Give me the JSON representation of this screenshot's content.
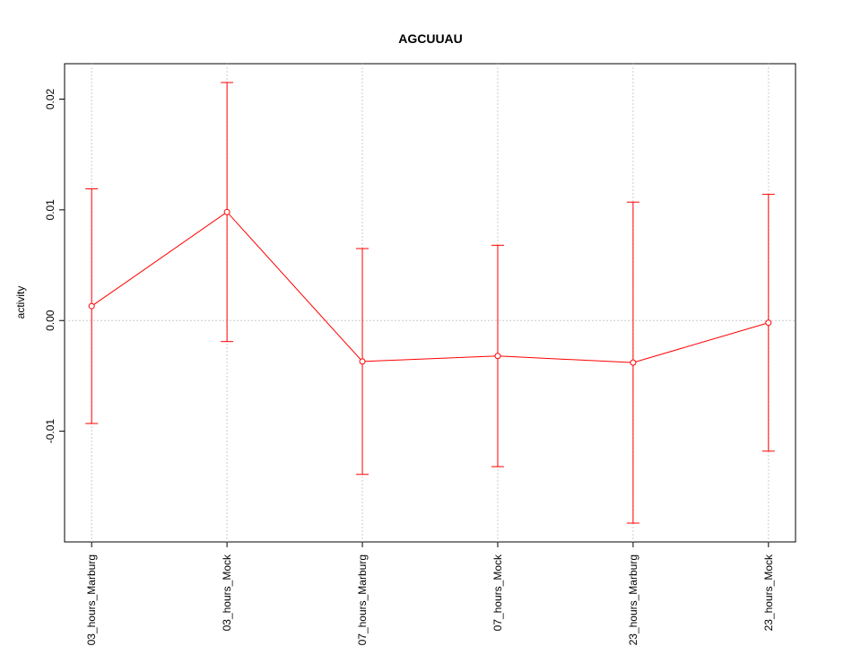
{
  "chart_data": {
    "type": "line",
    "title": "AGCUUAU",
    "y_label": "activity",
    "categories": [
      "03_hours_Marburg",
      "03_hours_Mock",
      "07_hours_Marburg",
      "07_hours_Mock",
      "23_hours_Marburg",
      "23_hours_Mock"
    ],
    "series": [
      {
        "name": "activity",
        "color": "#ff0000",
        "values": [
          0.0013,
          0.0098,
          -0.0037,
          -0.0032,
          -0.0038,
          -0.0002
        ],
        "errors": [
          0.0106,
          0.0117,
          0.0102,
          0.01,
          0.0145,
          0.0116
        ]
      }
    ],
    "ylim": [
      -0.02,
      0.0232
    ],
    "yticks": [
      -0.01,
      {
        "value": 0,
        "label": "0.00"
      },
      0.01,
      0.02
    ],
    "hline": 0,
    "grid": true
  }
}
